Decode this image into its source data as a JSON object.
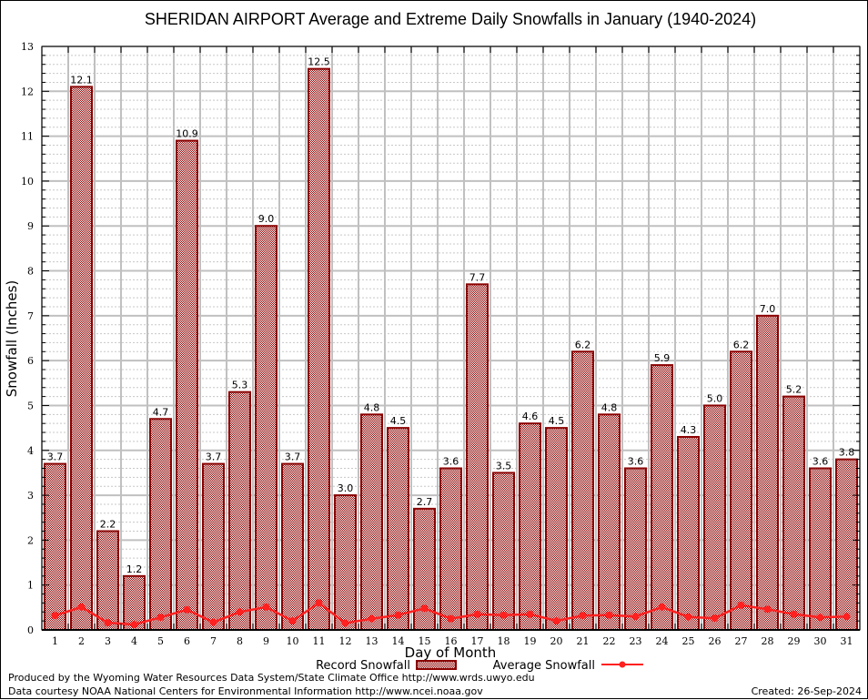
{
  "chart_data": {
    "type": "bar",
    "title": "SHERIDAN AIRPORT Average and Extreme Daily Snowfalls in January (1940-2024)",
    "xlabel": "Day of Month",
    "ylabel": "Snowfall (Inches)",
    "ylim": [
      0,
      13
    ],
    "yticks": [
      "0",
      "1",
      "2",
      "3",
      "4",
      "5",
      "6",
      "7",
      "8",
      "9",
      "10",
      "11",
      "12",
      "13"
    ],
    "categories": [
      "1",
      "2",
      "3",
      "4",
      "5",
      "6",
      "7",
      "8",
      "9",
      "10",
      "11",
      "12",
      "13",
      "14",
      "15",
      "16",
      "17",
      "18",
      "19",
      "20",
      "21",
      "22",
      "23",
      "24",
      "25",
      "26",
      "27",
      "28",
      "29",
      "30",
      "31"
    ],
    "grid": true,
    "legend_position": "bottom-center",
    "series": [
      {
        "name": "Record Snowfall",
        "type": "bar",
        "color": "#8b0000",
        "values": [
          3.7,
          12.1,
          2.2,
          1.2,
          4.7,
          10.9,
          3.7,
          5.3,
          9.0,
          3.7,
          12.5,
          3.0,
          4.8,
          4.5,
          2.7,
          3.6,
          7.7,
          3.5,
          4.6,
          4.5,
          6.2,
          4.8,
          3.6,
          5.9,
          4.3,
          5.0,
          6.2,
          7.0,
          5.2,
          3.6,
          3.8
        ],
        "labels": [
          "3.7",
          "12.1",
          "2.2",
          "1.2",
          "4.7",
          "10.9",
          "3.7",
          "5.3",
          "9.0",
          "3.7",
          "12.5",
          "3.0",
          "4.8",
          "4.5",
          "2.7",
          "3.6",
          "7.7",
          "3.5",
          "4.6",
          "4.5",
          "6.2",
          "4.8",
          "3.6",
          "5.9",
          "4.3",
          "5.0",
          "6.2",
          "7.0",
          "5.2",
          "3.6",
          "3.8"
        ]
      },
      {
        "name": "Average Snowfall",
        "type": "line",
        "color": "#ff2020",
        "values": [
          0.32,
          0.51,
          0.16,
          0.12,
          0.28,
          0.45,
          0.17,
          0.4,
          0.51,
          0.2,
          0.6,
          0.15,
          0.25,
          0.33,
          0.48,
          0.25,
          0.35,
          0.33,
          0.35,
          0.2,
          0.32,
          0.33,
          0.3,
          0.51,
          0.29,
          0.26,
          0.55,
          0.46,
          0.35,
          0.28,
          0.3
        ]
      }
    ]
  },
  "footer": {
    "produced_by": "Produced by the Wyoming Water Resources Data System/State Climate Office http://www.wrds.uwyo.edu",
    "data_courtesy": "Data courtesy NOAA National Centers for Environmental Information http://www.ncei.noaa.gov",
    "created": "Created: 26-Sep-2024"
  }
}
